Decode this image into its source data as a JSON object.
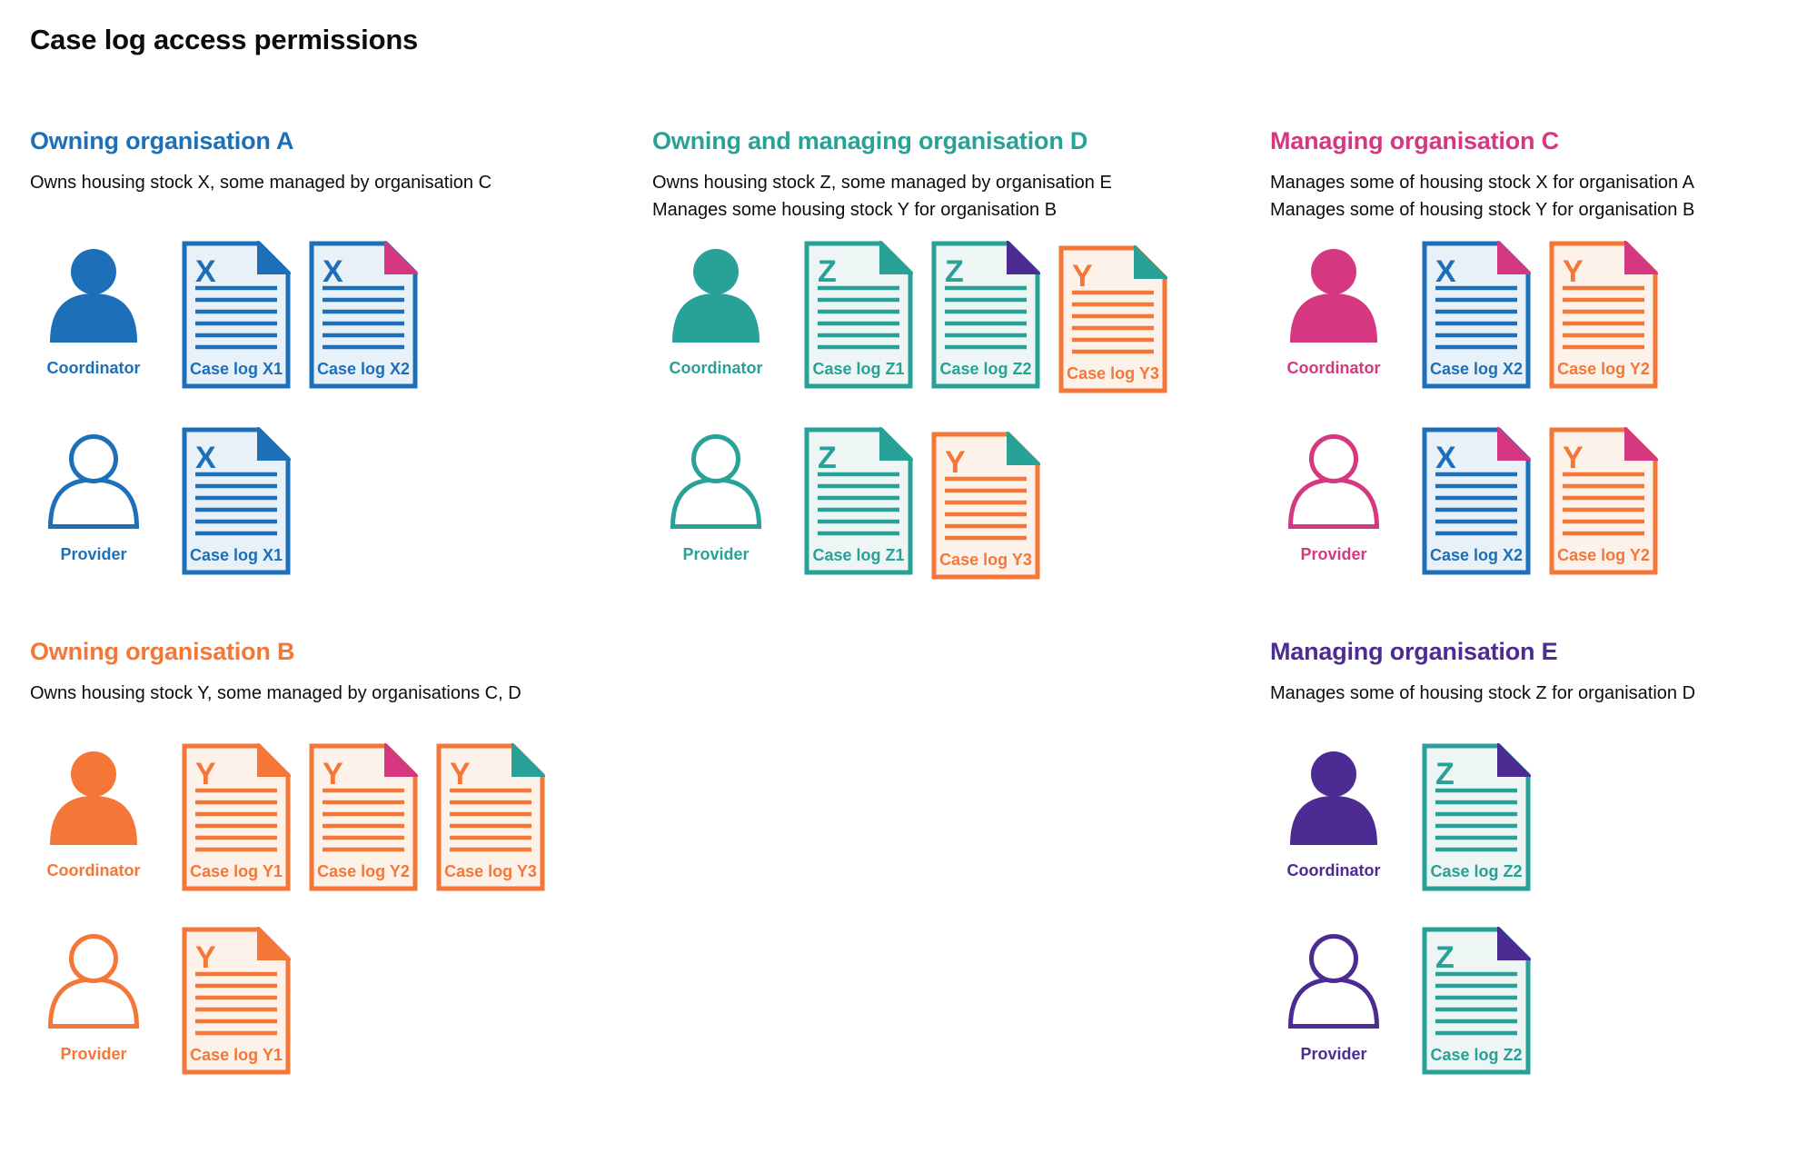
{
  "page_title": "Case log access permissions",
  "colors": {
    "blue": "#1d70b8",
    "teal": "#28a197",
    "pink": "#d53880",
    "orange": "#f47738",
    "purple": "#4c2c92",
    "text": "#0b0c0c"
  },
  "doc_tints": {
    "blue": "#e9f1f8",
    "teal": "#edf6f5",
    "orange": "#fdf2ea"
  },
  "roles": {
    "coordinator": "Coordinator",
    "provider": "Provider"
  },
  "sections": [
    {
      "id": "a",
      "layout_row": 1,
      "color": "blue",
      "title": "Owning organisation A",
      "description_lines": [
        "Owns housing stock X, some managed by organisation C"
      ],
      "coordinator_docs": [
        {
          "letter": "X",
          "label": "Case log X1",
          "doc_color": "blue",
          "fold_color": "blue"
        },
        {
          "letter": "X",
          "label": "Case log X2",
          "doc_color": "blue",
          "fold_color": "pink"
        }
      ],
      "provider_docs": [
        {
          "letter": "X",
          "label": "Case log X1",
          "doc_color": "blue",
          "fold_color": "blue"
        }
      ]
    },
    {
      "id": "d",
      "layout_row": 1,
      "color": "teal",
      "title": "Owning and managing organisation D",
      "description_lines": [
        "Owns housing stock Z, some managed by organisation E",
        "Manages some housing stock Y for organisation B"
      ],
      "coordinator_docs": [
        {
          "letter": "Z",
          "label": "Case log Z1",
          "doc_color": "teal",
          "fold_color": "teal"
        },
        {
          "letter": "Z",
          "label": "Case log Z2",
          "doc_color": "teal",
          "fold_color": "purple"
        },
        {
          "letter": "Y",
          "label": "Case log Y3",
          "doc_color": "orange",
          "fold_color": "teal",
          "offset_down": true
        }
      ],
      "provider_docs": [
        {
          "letter": "Z",
          "label": "Case log Z1",
          "doc_color": "teal",
          "fold_color": "teal"
        },
        {
          "letter": "Y",
          "label": "Case log Y3",
          "doc_color": "orange",
          "fold_color": "teal",
          "offset_down": true
        }
      ]
    },
    {
      "id": "c",
      "layout_row": 1,
      "color": "pink",
      "title": "Managing organisation C",
      "description_lines": [
        "Manages some of housing stock X for organisation A",
        "Manages some of housing stock Y for organisation B"
      ],
      "coordinator_docs": [
        {
          "letter": "X",
          "label": "Case log X2",
          "doc_color": "blue",
          "fold_color": "pink"
        },
        {
          "letter": "Y",
          "label": "Case log Y2",
          "doc_color": "orange",
          "fold_color": "pink"
        }
      ],
      "provider_docs": [
        {
          "letter": "X",
          "label": "Case log X2",
          "doc_color": "blue",
          "fold_color": "pink"
        },
        {
          "letter": "Y",
          "label": "Case log Y2",
          "doc_color": "orange",
          "fold_color": "pink"
        }
      ]
    },
    {
      "id": "b",
      "layout_row": 2,
      "color": "orange",
      "title": "Owning organisation B",
      "description_lines": [
        "Owns housing stock Y, some managed by organisations C, D"
      ],
      "coordinator_docs": [
        {
          "letter": "Y",
          "label": "Case log Y1",
          "doc_color": "orange",
          "fold_color": "orange"
        },
        {
          "letter": "Y",
          "label": "Case log Y2",
          "doc_color": "orange",
          "fold_color": "pink"
        },
        {
          "letter": "Y",
          "label": "Case log Y3",
          "doc_color": "orange",
          "fold_color": "teal"
        }
      ],
      "provider_docs": [
        {
          "letter": "Y",
          "label": "Case log Y1",
          "doc_color": "orange",
          "fold_color": "orange"
        }
      ]
    },
    {
      "id": "e",
      "layout_row": 2,
      "color": "purple",
      "title": "Managing organisation E",
      "description_lines": [
        "Manages some of housing stock Z for organisation D"
      ],
      "coordinator_docs": [
        {
          "letter": "Z",
          "label": "Case log Z2",
          "doc_color": "teal",
          "fold_color": "purple"
        }
      ],
      "provider_docs": [
        {
          "letter": "Z",
          "label": "Case log Z2",
          "doc_color": "teal",
          "fold_color": "purple"
        }
      ]
    }
  ]
}
